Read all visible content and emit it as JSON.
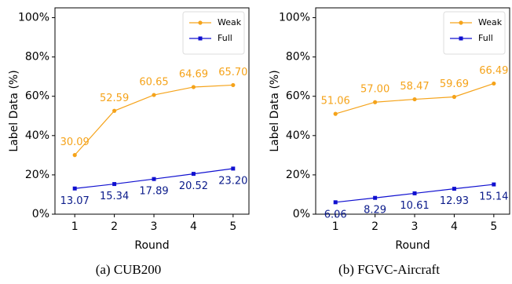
{
  "chart_data": [
    {
      "type": "line",
      "caption": "(a) CUB200",
      "xlabel": "Round",
      "ylabel": "Label Data (%)",
      "x": [
        1,
        2,
        3,
        4,
        5
      ],
      "xlim": [
        0.5,
        5.4
      ],
      "xticks": [
        1,
        2,
        3,
        4,
        5
      ],
      "ylim": [
        0,
        105
      ],
      "yticks": [
        {
          "value": 0,
          "label": "0%"
        },
        {
          "value": 20,
          "label": "20%"
        },
        {
          "value": 40,
          "label": "40%"
        },
        {
          "value": 60,
          "label": "60%"
        },
        {
          "value": 80,
          "label": "80%"
        },
        {
          "value": 100,
          "label": "100%"
        }
      ],
      "legend": "upper right",
      "series": [
        {
          "name": "Weak",
          "color": "#f5a31a",
          "marker": "circle",
          "values": [
            30.09,
            52.59,
            60.65,
            64.69,
            65.7
          ],
          "value_labels": [
            "30.09",
            "52.59",
            "60.65",
            "64.69",
            "65.70"
          ]
        },
        {
          "name": "Full",
          "color": "#1010d0",
          "label_color": "#0a1a8a",
          "marker": "square",
          "values": [
            13.07,
            15.34,
            17.89,
            20.52,
            23.2
          ],
          "value_labels": [
            "13.07",
            "15.34",
            "17.89",
            "20.52",
            "23.20"
          ]
        }
      ]
    },
    {
      "type": "line",
      "caption": "(b) FGVC-Aircraft",
      "xlabel": "Round",
      "ylabel": "Label Data (%)",
      "x": [
        1,
        2,
        3,
        4,
        5
      ],
      "xlim": [
        0.5,
        5.4
      ],
      "xticks": [
        1,
        2,
        3,
        4,
        5
      ],
      "ylim": [
        0,
        105
      ],
      "yticks": [
        {
          "value": 0,
          "label": "0%"
        },
        {
          "value": 20,
          "label": "20%"
        },
        {
          "value": 40,
          "label": "40%"
        },
        {
          "value": 60,
          "label": "60%"
        },
        {
          "value": 80,
          "label": "80%"
        },
        {
          "value": 100,
          "label": "100%"
        }
      ],
      "legend": "upper right",
      "series": [
        {
          "name": "Weak",
          "color": "#f5a31a",
          "marker": "circle",
          "values": [
            51.06,
            57.0,
            58.47,
            59.69,
            66.49
          ],
          "value_labels": [
            "51.06",
            "57.00",
            "58.47",
            "59.69",
            "66.49"
          ]
        },
        {
          "name": "Full",
          "color": "#1010d0",
          "label_color": "#0a1a8a",
          "marker": "square",
          "values": [
            6.06,
            8.29,
            10.61,
            12.93,
            15.14
          ],
          "value_labels": [
            "6.06",
            "8.29",
            "10.61",
            "12.93",
            "15.14"
          ]
        }
      ]
    }
  ]
}
